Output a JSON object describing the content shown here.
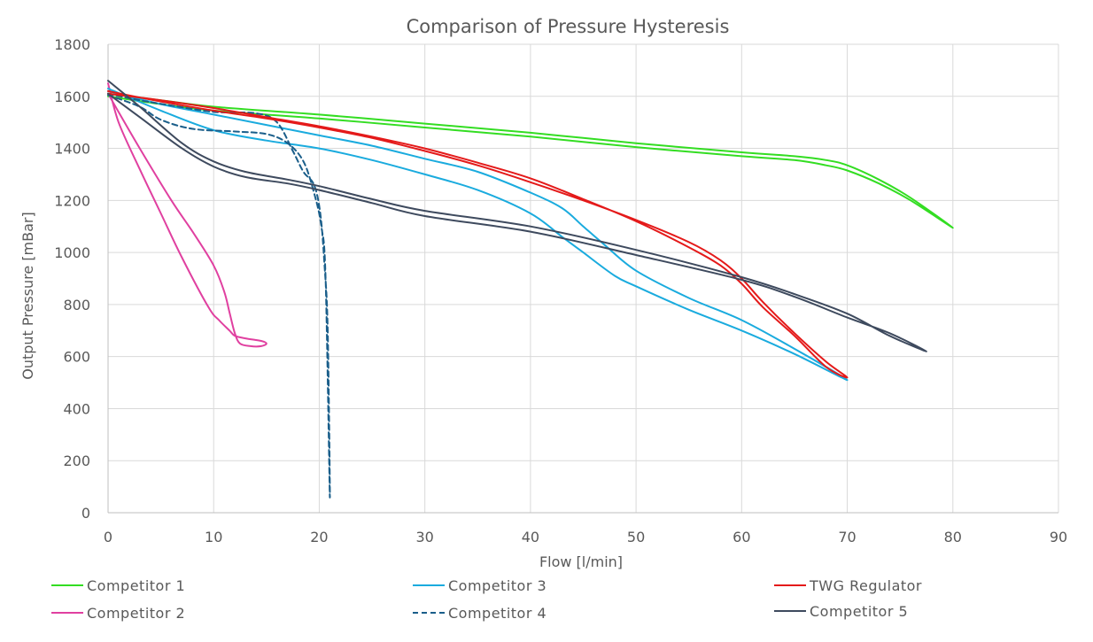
{
  "chart_data": {
    "type": "line",
    "title": "Comparison of Pressure Hysteresis",
    "xlabel": "Flow [l/min]",
    "ylabel": "Output Pressure [mBar]",
    "xlim": [
      0,
      90
    ],
    "ylim": [
      0,
      1800
    ],
    "xticks": [
      0,
      10,
      20,
      30,
      40,
      50,
      60,
      70,
      80,
      90
    ],
    "yticks": [
      0,
      200,
      400,
      600,
      800,
      1000,
      1200,
      1400,
      1600,
      1800
    ],
    "grid": true,
    "legend_position": "bottom",
    "series": [
      {
        "name": "Competitor 1",
        "color": "#33DD22",
        "dash": false,
        "x": [
          0,
          5,
          10,
          20,
          30,
          40,
          50,
          60,
          65,
          68,
          70,
          73,
          76,
          80,
          76,
          73,
          70,
          68,
          65,
          60,
          50,
          40,
          30,
          20,
          10,
          5,
          0
        ],
        "y": [
          1610,
          1585,
          1560,
          1530,
          1495,
          1460,
          1420,
          1385,
          1370,
          1355,
          1335,
          1280,
          1210,
          1095,
          1200,
          1265,
          1315,
          1335,
          1355,
          1370,
          1405,
          1445,
          1480,
          1515,
          1545,
          1570,
          1600
        ]
      },
      {
        "name": "Competitor 2",
        "color": "#E040A0",
        "dash": false,
        "x": [
          0,
          3,
          6,
          8,
          10,
          11,
          11.5,
          12,
          12.5,
          13.5,
          14.5,
          15,
          14.5,
          13,
          12,
          11.5,
          10.5,
          9.5,
          7,
          5,
          3,
          1,
          0
        ],
        "y": [
          1610,
          1400,
          1200,
          1080,
          950,
          850,
          770,
          690,
          650,
          640,
          640,
          650,
          660,
          670,
          680,
          700,
          740,
          790,
          980,
          1150,
          1320,
          1500,
          1650
        ]
      },
      {
        "name": "Competitor 3",
        "color": "#1AABDE",
        "dash": false,
        "x": [
          0,
          5,
          10,
          15,
          20,
          25,
          30,
          35,
          40,
          43,
          45,
          48,
          50,
          55,
          60,
          65,
          70,
          65,
          60,
          55,
          50,
          47,
          45,
          43,
          40,
          35,
          30,
          25,
          20,
          15,
          10,
          5,
          0
        ],
        "y": [
          1630,
          1545,
          1470,
          1430,
          1400,
          1355,
          1300,
          1240,
          1150,
          1060,
          1000,
          910,
          870,
          780,
          700,
          610,
          510,
          630,
          740,
          825,
          930,
          1030,
          1100,
          1170,
          1230,
          1310,
          1360,
          1410,
          1450,
          1490,
          1530,
          1570,
          1620
        ]
      },
      {
        "name": "Competitor 4",
        "color": "#1A5E8A",
        "dash": true,
        "x": [
          0,
          3,
          5,
          8,
          12,
          15,
          17,
          18.5,
          19.5,
          20.2,
          20.6,
          21,
          20.8,
          20.5,
          20.1,
          19.5,
          18.5,
          17.5,
          16,
          14,
          10,
          6,
          3,
          0
        ],
        "y": [
          1605,
          1560,
          1510,
          1475,
          1465,
          1455,
          1420,
          1350,
          1230,
          1100,
          900,
          60,
          700,
          950,
          1150,
          1260,
          1310,
          1390,
          1500,
          1535,
          1540,
          1565,
          1585,
          1610
        ]
      },
      {
        "name": "TWG Regulator",
        "color": "#E41A1A",
        "dash": false,
        "x": [
          0,
          5,
          10,
          15,
          20,
          25,
          30,
          35,
          40,
          45,
          50,
          55,
          58,
          60,
          62,
          65,
          68,
          70,
          68,
          65,
          62,
          60,
          58,
          55,
          50,
          45,
          40,
          35,
          30,
          25,
          20,
          15,
          10,
          5,
          0
        ],
        "y": [
          1620,
          1580,
          1545,
          1515,
          1480,
          1440,
          1390,
          1335,
          1270,
          1200,
          1125,
          1040,
          970,
          900,
          810,
          690,
          580,
          520,
          560,
          680,
          790,
          880,
          950,
          1020,
          1120,
          1205,
          1285,
          1345,
          1400,
          1445,
          1485,
          1520,
          1555,
          1585,
          1610
        ]
      },
      {
        "name": "Competitor 5",
        "color": "#3E4A5E",
        "dash": false,
        "x": [
          0,
          3,
          7,
          10,
          13,
          17,
          20,
          25,
          30,
          40,
          50,
          60,
          65,
          70,
          74,
          77.5,
          74,
          70,
          65,
          60,
          50,
          40,
          30,
          25,
          20,
          17,
          13,
          10,
          7,
          3,
          0
        ],
        "y": [
          1610,
          1520,
          1400,
          1330,
          1290,
          1265,
          1240,
          1190,
          1140,
          1080,
          990,
          895,
          830,
          750,
          690,
          620,
          680,
          765,
          840,
          905,
          1010,
          1100,
          1160,
          1205,
          1255,
          1280,
          1310,
          1350,
          1420,
          1560,
          1660
        ]
      }
    ]
  }
}
